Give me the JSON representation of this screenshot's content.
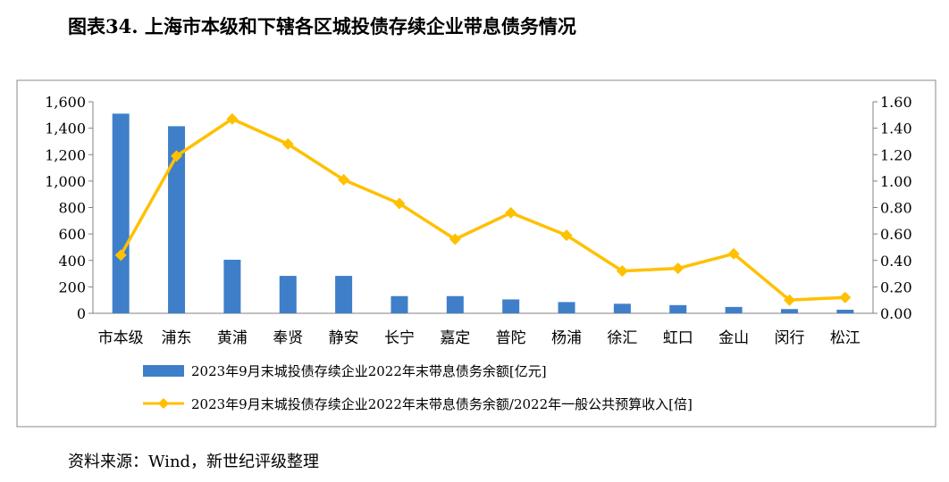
{
  "title": "图表34. 上海市本级和下辖各区城投债存续企业带息债务情况",
  "source": "资料来源：Wind，新世纪评级整理",
  "colors": {
    "bar": "#3F7FC9",
    "line": "#FFC000",
    "frame": "#898989",
    "axis": "#808080"
  },
  "chart_data": {
    "type": "bar+line",
    "title": "图表34. 上海市本级和下辖各区城投债存续企业带息债务情况",
    "categories": [
      "市本级",
      "浦东",
      "黄浦",
      "奉贤",
      "静安",
      "长宁",
      "嘉定",
      "普陀",
      "杨浦",
      "徐汇",
      "虹口",
      "金山",
      "闵行",
      "松江"
    ],
    "series": [
      {
        "name": "2023年9月末城投债存续企业2022年末带息债务余额[亿元]",
        "type": "bar",
        "axis": "left",
        "values": [
          1510,
          1415,
          405,
          283,
          283,
          130,
          130,
          105,
          85,
          72,
          62,
          48,
          32,
          27
        ]
      },
      {
        "name": "2023年9月末城投债存续企业2022年末带息债务余额/2022年一般公共预算收入[倍]",
        "type": "line",
        "axis": "right",
        "values": [
          0.44,
          1.19,
          1.47,
          1.28,
          1.01,
          0.83,
          0.56,
          0.76,
          0.59,
          0.32,
          0.34,
          0.45,
          0.1,
          0.12
        ]
      }
    ],
    "y_left": {
      "min": 0,
      "max": 1600,
      "ticks": [
        "0",
        "200",
        "400",
        "600",
        "800",
        "1,000",
        "1,200",
        "1,400",
        "1,600"
      ]
    },
    "y_right": {
      "min": 0,
      "max": 1.6,
      "ticks": [
        "0.00",
        "0.20",
        "0.40",
        "0.60",
        "0.80",
        "1.00",
        "1.20",
        "1.40",
        "1.60"
      ]
    },
    "grid": false,
    "legend": "bottom"
  }
}
